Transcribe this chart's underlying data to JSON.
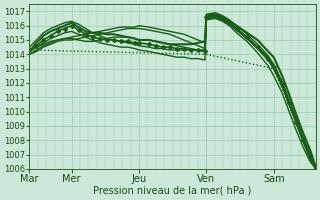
{
  "xlabel": "Pression niveau de la mer( hPa )",
  "ylim": [
    1006,
    1017.5
  ],
  "yticks": [
    1006,
    1007,
    1008,
    1009,
    1010,
    1011,
    1012,
    1013,
    1014,
    1015,
    1016,
    1017
  ],
  "day_labels": [
    "Mar",
    "Mer",
    "Jeu",
    "Ven",
    "Sam"
  ],
  "day_positions": [
    0,
    60,
    156,
    252,
    348
  ],
  "xlim": [
    0,
    408
  ],
  "bg_color": "#cce8d8",
  "grid_color": "#99ccaa",
  "line_color": "#1a5c1a",
  "lines": [
    {
      "points": [
        [
          0,
          1014.2
        ],
        [
          10,
          1014.8
        ],
        [
          20,
          1015.3
        ],
        [
          30,
          1015.6
        ],
        [
          40,
          1015.8
        ],
        [
          50,
          1016.0
        ],
        [
          60,
          1016.2
        ],
        [
          70,
          1015.9
        ],
        [
          80,
          1015.6
        ],
        [
          90,
          1015.5
        ],
        [
          100,
          1015.5
        ],
        [
          110,
          1015.4
        ],
        [
          120,
          1015.4
        ],
        [
          130,
          1015.3
        ],
        [
          140,
          1015.2
        ],
        [
          150,
          1015.1
        ],
        [
          156,
          1015.0
        ],
        [
          170,
          1015.0
        ],
        [
          180,
          1014.9
        ],
        [
          190,
          1014.8
        ],
        [
          200,
          1014.7
        ],
        [
          210,
          1014.7
        ],
        [
          220,
          1014.7
        ],
        [
          230,
          1014.7
        ],
        [
          240,
          1014.8
        ],
        [
          250,
          1014.9
        ],
        [
          252,
          1016.7
        ],
        [
          265,
          1016.8
        ],
        [
          275,
          1016.6
        ],
        [
          285,
          1016.3
        ],
        [
          295,
          1016.0
        ],
        [
          310,
          1015.5
        ],
        [
          325,
          1015.0
        ],
        [
          340,
          1014.2
        ],
        [
          348,
          1013.8
        ],
        [
          360,
          1012.5
        ],
        [
          370,
          1011.2
        ],
        [
          380,
          1009.8
        ],
        [
          390,
          1008.5
        ],
        [
          400,
          1007.3
        ],
        [
          408,
          1006.1
        ]
      ],
      "style": "solid",
      "lw": 1.5
    },
    {
      "points": [
        [
          0,
          1014.0
        ],
        [
          10,
          1014.3
        ],
        [
          20,
          1014.6
        ],
        [
          30,
          1014.8
        ],
        [
          40,
          1015.0
        ],
        [
          50,
          1015.1
        ],
        [
          60,
          1015.2
        ],
        [
          70,
          1015.3
        ],
        [
          80,
          1015.4
        ],
        [
          90,
          1015.5
        ],
        [
          100,
          1015.6
        ],
        [
          110,
          1015.7
        ],
        [
          120,
          1015.8
        ],
        [
          130,
          1015.9
        ],
        [
          140,
          1015.9
        ],
        [
          150,
          1015.9
        ],
        [
          156,
          1016.0
        ],
        [
          170,
          1015.9
        ],
        [
          180,
          1015.8
        ],
        [
          190,
          1015.7
        ],
        [
          200,
          1015.6
        ],
        [
          210,
          1015.5
        ],
        [
          220,
          1015.4
        ],
        [
          230,
          1015.2
        ],
        [
          240,
          1015.0
        ],
        [
          250,
          1014.8
        ],
        [
          252,
          1016.6
        ],
        [
          265,
          1016.7
        ],
        [
          275,
          1016.5
        ],
        [
          285,
          1016.2
        ],
        [
          295,
          1015.8
        ],
        [
          310,
          1015.2
        ],
        [
          325,
          1014.5
        ],
        [
          340,
          1013.8
        ],
        [
          348,
          1013.2
        ],
        [
          360,
          1012.0
        ],
        [
          370,
          1010.7
        ],
        [
          380,
          1009.4
        ],
        [
          390,
          1008.1
        ],
        [
          400,
          1007.0
        ],
        [
          408,
          1006.1
        ]
      ],
      "style": "solid",
      "lw": 1.0
    },
    {
      "points": [
        [
          0,
          1014.3
        ],
        [
          10,
          1014.5
        ],
        [
          20,
          1014.7
        ],
        [
          30,
          1014.9
        ],
        [
          40,
          1015.0
        ],
        [
          50,
          1015.1
        ],
        [
          60,
          1015.1
        ],
        [
          70,
          1015.0
        ],
        [
          80,
          1014.9
        ],
        [
          90,
          1014.9
        ],
        [
          100,
          1015.0
        ],
        [
          110,
          1015.1
        ],
        [
          120,
          1015.2
        ],
        [
          130,
          1015.2
        ],
        [
          140,
          1015.2
        ],
        [
          150,
          1015.1
        ],
        [
          156,
          1015.0
        ],
        [
          170,
          1015.0
        ],
        [
          180,
          1014.9
        ],
        [
          190,
          1014.8
        ],
        [
          200,
          1014.7
        ],
        [
          210,
          1014.6
        ],
        [
          220,
          1014.5
        ],
        [
          230,
          1014.4
        ],
        [
          240,
          1014.3
        ],
        [
          250,
          1014.2
        ],
        [
          252,
          1016.5
        ],
        [
          265,
          1016.6
        ],
        [
          275,
          1016.4
        ],
        [
          285,
          1016.1
        ],
        [
          295,
          1015.7
        ],
        [
          310,
          1015.1
        ],
        [
          325,
          1014.4
        ],
        [
          340,
          1013.6
        ],
        [
          348,
          1013.0
        ],
        [
          360,
          1011.8
        ],
        [
          370,
          1010.5
        ],
        [
          380,
          1009.2
        ],
        [
          390,
          1007.9
        ],
        [
          400,
          1006.7
        ],
        [
          408,
          1006.0
        ]
      ],
      "style": "solid",
      "lw": 1.0
    },
    {
      "points": [
        [
          0,
          1014.5
        ],
        [
          10,
          1015.0
        ],
        [
          20,
          1015.5
        ],
        [
          30,
          1015.8
        ],
        [
          40,
          1016.0
        ],
        [
          50,
          1016.2
        ],
        [
          60,
          1016.3
        ],
        [
          70,
          1016.1
        ],
        [
          80,
          1015.8
        ],
        [
          90,
          1015.5
        ],
        [
          100,
          1015.3
        ],
        [
          110,
          1015.1
        ],
        [
          120,
          1015.0
        ],
        [
          130,
          1014.9
        ],
        [
          140,
          1014.8
        ],
        [
          150,
          1014.7
        ],
        [
          156,
          1014.6
        ],
        [
          170,
          1014.5
        ],
        [
          180,
          1014.4
        ],
        [
          190,
          1014.4
        ],
        [
          200,
          1014.3
        ],
        [
          210,
          1014.3
        ],
        [
          220,
          1014.3
        ],
        [
          230,
          1014.3
        ],
        [
          240,
          1014.3
        ],
        [
          250,
          1014.3
        ],
        [
          252,
          1016.8
        ],
        [
          265,
          1016.9
        ],
        [
          275,
          1016.7
        ],
        [
          285,
          1016.4
        ],
        [
          295,
          1016.0
        ],
        [
          310,
          1015.4
        ],
        [
          325,
          1014.7
        ],
        [
          340,
          1013.9
        ],
        [
          348,
          1013.3
        ],
        [
          360,
          1012.1
        ],
        [
          370,
          1010.8
        ],
        [
          380,
          1009.5
        ],
        [
          390,
          1008.2
        ],
        [
          400,
          1007.0
        ],
        [
          408,
          1006.1
        ]
      ],
      "style": "solid",
      "lw": 1.0
    },
    {
      "points": [
        [
          0,
          1014.0
        ],
        [
          10,
          1014.2
        ],
        [
          20,
          1014.5
        ],
        [
          30,
          1014.7
        ],
        [
          40,
          1014.9
        ],
        [
          50,
          1015.0
        ],
        [
          60,
          1015.0
        ],
        [
          70,
          1015.1
        ],
        [
          80,
          1015.2
        ],
        [
          90,
          1015.3
        ],
        [
          100,
          1015.4
        ],
        [
          110,
          1015.5
        ],
        [
          120,
          1015.6
        ],
        [
          130,
          1015.7
        ],
        [
          140,
          1015.8
        ],
        [
          150,
          1015.8
        ],
        [
          156,
          1015.8
        ],
        [
          170,
          1015.7
        ],
        [
          180,
          1015.6
        ],
        [
          190,
          1015.5
        ],
        [
          200,
          1015.4
        ],
        [
          210,
          1015.2
        ],
        [
          220,
          1015.0
        ],
        [
          230,
          1014.8
        ],
        [
          240,
          1014.6
        ],
        [
          250,
          1014.4
        ],
        [
          252,
          1016.5
        ],
        [
          265,
          1016.6
        ],
        [
          275,
          1016.4
        ],
        [
          285,
          1016.1
        ],
        [
          295,
          1015.7
        ],
        [
          310,
          1015.1
        ],
        [
          325,
          1014.4
        ],
        [
          340,
          1013.6
        ],
        [
          348,
          1013.0
        ],
        [
          360,
          1011.8
        ],
        [
          370,
          1010.5
        ],
        [
          380,
          1009.2
        ],
        [
          390,
          1007.9
        ],
        [
          400,
          1006.7
        ],
        [
          408,
          1006.0
        ]
      ],
      "style": "solid",
      "lw": 1.0
    },
    {
      "points": [
        [
          0,
          1014.2
        ],
        [
          10,
          1014.5
        ],
        [
          20,
          1014.8
        ],
        [
          30,
          1015.1
        ],
        [
          40,
          1015.3
        ],
        [
          50,
          1015.5
        ],
        [
          60,
          1015.6
        ],
        [
          70,
          1015.4
        ],
        [
          80,
          1015.2
        ],
        [
          90,
          1015.0
        ],
        [
          100,
          1014.8
        ],
        [
          110,
          1014.7
        ],
        [
          120,
          1014.6
        ],
        [
          130,
          1014.5
        ],
        [
          140,
          1014.5
        ],
        [
          150,
          1014.4
        ],
        [
          156,
          1014.3
        ],
        [
          170,
          1014.2
        ],
        [
          180,
          1014.1
        ],
        [
          190,
          1014.0
        ],
        [
          200,
          1013.9
        ],
        [
          210,
          1013.8
        ],
        [
          220,
          1013.8
        ],
        [
          230,
          1013.7
        ],
        [
          240,
          1013.7
        ],
        [
          250,
          1013.6
        ],
        [
          252,
          1016.4
        ],
        [
          265,
          1016.5
        ],
        [
          275,
          1016.3
        ],
        [
          285,
          1016.0
        ],
        [
          295,
          1015.5
        ],
        [
          310,
          1014.9
        ],
        [
          325,
          1014.1
        ],
        [
          340,
          1013.2
        ],
        [
          348,
          1012.5
        ],
        [
          360,
          1011.3
        ],
        [
          370,
          1010.0
        ],
        [
          380,
          1008.7
        ],
        [
          390,
          1007.5
        ],
        [
          400,
          1006.5
        ],
        [
          408,
          1006.0
        ]
      ],
      "style": "solid",
      "lw": 1.0
    },
    {
      "points": [
        [
          0,
          1014.3
        ],
        [
          252,
          1014.0
        ],
        [
          348,
          1013.0
        ],
        [
          408,
          1006.0
        ]
      ],
      "style": "dotted",
      "lw": 1.0
    },
    {
      "points": [
        [
          0,
          1014.3
        ],
        [
          10,
          1014.6
        ],
        [
          20,
          1015.0
        ],
        [
          30,
          1015.3
        ],
        [
          40,
          1015.6
        ],
        [
          50,
          1015.8
        ],
        [
          60,
          1016.0
        ],
        [
          70,
          1015.7
        ],
        [
          80,
          1015.4
        ],
        [
          90,
          1015.2
        ],
        [
          100,
          1015.1
        ],
        [
          110,
          1015.0
        ],
        [
          120,
          1015.0
        ],
        [
          130,
          1014.9
        ],
        [
          140,
          1014.9
        ],
        [
          150,
          1014.8
        ],
        [
          156,
          1014.8
        ],
        [
          170,
          1014.7
        ],
        [
          180,
          1014.6
        ],
        [
          190,
          1014.5
        ],
        [
          200,
          1014.5
        ],
        [
          210,
          1014.4
        ],
        [
          220,
          1014.4
        ],
        [
          230,
          1014.3
        ],
        [
          240,
          1014.3
        ],
        [
          250,
          1014.2
        ],
        [
          252,
          1016.6
        ],
        [
          265,
          1016.7
        ],
        [
          275,
          1016.5
        ],
        [
          285,
          1016.2
        ],
        [
          295,
          1015.8
        ],
        [
          310,
          1015.2
        ],
        [
          325,
          1014.5
        ],
        [
          340,
          1013.7
        ],
        [
          348,
          1013.1
        ],
        [
          360,
          1011.9
        ],
        [
          370,
          1010.6
        ],
        [
          380,
          1009.3
        ],
        [
          390,
          1008.0
        ],
        [
          400,
          1006.8
        ],
        [
          408,
          1006.0
        ]
      ],
      "style": "solid",
      "lw": 1.2,
      "marker": "s"
    }
  ]
}
